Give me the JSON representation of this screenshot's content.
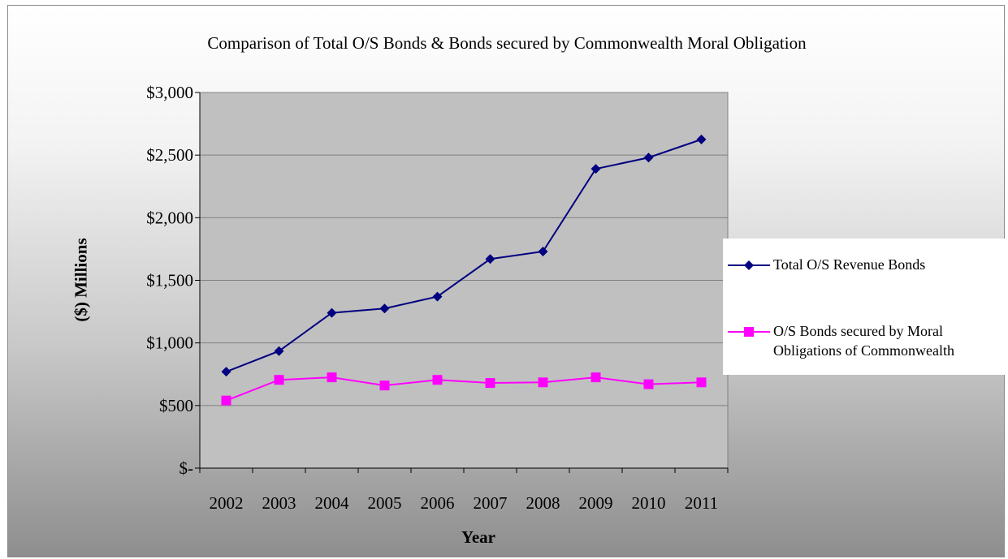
{
  "chart_data": {
    "type": "line",
    "title": "Comparison of Total O/S Bonds & Bonds secured by Commonwealth Moral Obligation",
    "xlabel": "Year",
    "ylabel": "($) Millions",
    "categories": [
      "2002",
      "2003",
      "2004",
      "2005",
      "2006",
      "2007",
      "2008",
      "2009",
      "2010",
      "2011"
    ],
    "ylim": [
      0,
      3000
    ],
    "yticks": [
      0,
      500,
      1000,
      1500,
      2000,
      2500,
      3000
    ],
    "ytick_labels": [
      "$-",
      "$500",
      "$1,000",
      "$1,500",
      "$2,000",
      "$2,500",
      "$3,000"
    ],
    "grid": true,
    "legend_position": "right",
    "series": [
      {
        "name": "Total O/S Revenue Bonds",
        "values": [
          770,
          935,
          1240,
          1275,
          1370,
          1670,
          1730,
          2390,
          2480,
          2625
        ],
        "color": "#000080",
        "marker": "diamond"
      },
      {
        "name": "O/S Bonds secured by Moral Obligations of Commonwealth",
        "legend_lines": [
          "O/S Bonds secured by Moral",
          "Obligations of Commonwealth"
        ],
        "values": [
          540,
          705,
          725,
          660,
          705,
          680,
          685,
          725,
          670,
          685
        ],
        "color": "#ff00ff",
        "marker": "square"
      }
    ],
    "plot_background": "#c0c0c0"
  }
}
